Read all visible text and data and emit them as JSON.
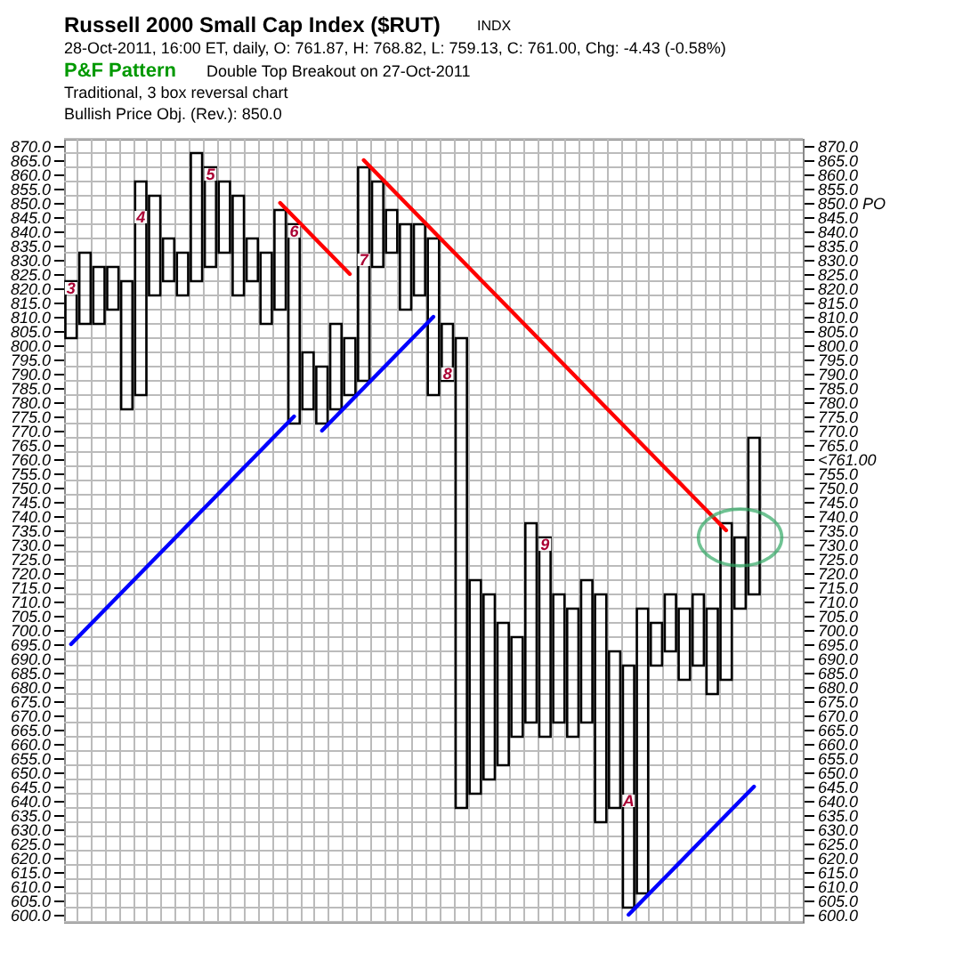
{
  "chart_data": {
    "type": "bar",
    "title": "Russell 2000 Small Cap Index ($RUT)",
    "subtitle": "28-Oct-2011, 16:00 ET, daily, O: 761.87, H: 768.82, L: 759.13, C: 761.00, Chg: -4.43 (-0.58%)",
    "annotations": [
      "INDX",
      "P&F Pattern",
      "Double Top Breakout on 27-Oct-2011",
      "Traditional, 3 box reversal chart",
      "Bullish Price Obj. (Rev.): 850.0",
      {
        "text": "3",
        "y": 820
      },
      {
        "text": "4",
        "y": 845
      },
      {
        "text": "5",
        "y": 860
      },
      {
        "text": "6",
        "y": 840
      },
      {
        "text": "7",
        "y": 830
      },
      {
        "text": "8",
        "y": 790
      },
      {
        "text": "9",
        "y": 730
      },
      {
        "text": "A",
        "y": 640
      }
    ],
    "categories": [
      null,
      null,
      null,
      null,
      null,
      null,
      null,
      null,
      null,
      null,
      null,
      null,
      null,
      null,
      null,
      null,
      null,
      null,
      null,
      null,
      null,
      null,
      null,
      null,
      null,
      null,
      null,
      null,
      null,
      null,
      null,
      null,
      null,
      null,
      null,
      null,
      null,
      null,
      null,
      null,
      null,
      null,
      null,
      null,
      null,
      null,
      null,
      null,
      null,
      null,
      null,
      null,
      null
    ],
    "series": [
      {
        "color": "#000000",
        "base": [
          null,
          807.5,
          null,
          812.5,
          null,
          782.5,
          null,
          822.5,
          null,
          822.5,
          null,
          832.5,
          null,
          822.5,
          null,
          812.5,
          null,
          777.5,
          null,
          777.5,
          null,
          787.5,
          null,
          832.5,
          null,
          817.5,
          null,
          787.5,
          null,
          642.5,
          null,
          652.5,
          null,
          667.5,
          null,
          667.5,
          null,
          667.5,
          null,
          637.5,
          null,
          607.5,
          null,
          692.5,
          null,
          687.5,
          null,
          682.5,
          null,
          712.5,
          null,
          null,
          null
        ],
        "values": [
          null,
          25,
          null,
          15,
          null,
          75,
          null,
          15,
          null,
          45,
          null,
          25,
          null,
          15,
          null,
          35,
          null,
          20,
          null,
          30,
          null,
          75,
          null,
          15,
          null,
          25,
          null,
          20,
          null,
          75,
          null,
          50,
          null,
          70,
          null,
          45,
          null,
          50,
          null,
          55,
          null,
          100,
          null,
          20,
          null,
          25,
          null,
          55,
          null,
          55,
          null,
          null,
          null
        ]
      },
      {
        "color": "#000000",
        "base": [
          802.5,
          null,
          807.5,
          null,
          777.5,
          null,
          817.5,
          null,
          817.5,
          null,
          827.5,
          null,
          817.5,
          null,
          807.5,
          null,
          772.5,
          null,
          772.5,
          null,
          782.5,
          null,
          827.5,
          null,
          812.5,
          null,
          782.5,
          null,
          637.5,
          null,
          647.5,
          null,
          662.5,
          null,
          662.5,
          null,
          662.5,
          null,
          632.5,
          null,
          602.5,
          null,
          687.5,
          null,
          682.5,
          null,
          677.5,
          null,
          707.5,
          null,
          null,
          null,
          null
        ],
        "values": [
          20,
          null,
          20,
          null,
          45,
          null,
          35,
          null,
          15,
          null,
          35,
          null,
          35,
          null,
          25,
          null,
          70,
          null,
          20,
          null,
          20,
          null,
          30,
          null,
          30,
          null,
          55,
          null,
          165,
          null,
          65,
          null,
          35,
          null,
          70,
          null,
          45,
          null,
          80,
          null,
          85,
          null,
          15,
          null,
          25,
          null,
          30,
          null,
          25,
          null,
          null,
          null,
          null
        ]
      },
      {
        "type": "line",
        "color": "#ff0000",
        "values": [
          null,
          null,
          null,
          null,
          null,
          null,
          null,
          null,
          null,
          null,
          null,
          null,
          null,
          null,
          null,
          850,
          845,
          840,
          835,
          830,
          825,
          null,
          null,
          null,
          null,
          null,
          null,
          null,
          null,
          null,
          null,
          null,
          null,
          null,
          null,
          null,
          null,
          null,
          null,
          null,
          null,
          null,
          null,
          null,
          null,
          null,
          null,
          null,
          null,
          null,
          null,
          null,
          null
        ]
      },
      {
        "type": "line",
        "color": "#ff0000",
        "values": [
          null,
          null,
          null,
          null,
          null,
          null,
          null,
          null,
          null,
          null,
          null,
          null,
          null,
          null,
          null,
          null,
          null,
          null,
          null,
          null,
          null,
          865,
          860,
          855,
          850,
          845,
          840,
          835,
          830,
          825,
          820,
          815,
          810,
          805,
          800,
          795,
          790,
          785,
          780,
          775,
          770,
          765,
          760,
          755,
          750,
          745,
          740,
          735,
          null,
          null,
          null,
          null,
          null
        ]
      },
      {
        "type": "line",
        "color": "#0000ff",
        "values": [
          695,
          700,
          705,
          710,
          715,
          720,
          725,
          730,
          735,
          740,
          745,
          750,
          755,
          760,
          765,
          770,
          775,
          null,
          null,
          null,
          null,
          null,
          null,
          null,
          null,
          null,
          null,
          null,
          null,
          null,
          null,
          null,
          null,
          null,
          null,
          null,
          null,
          null,
          null,
          null,
          null,
          null,
          null,
          null,
          null,
          null,
          null,
          null,
          null,
          null,
          null,
          null,
          null
        ]
      },
      {
        "type": "line",
        "color": "#0000ff",
        "values": [
          null,
          null,
          null,
          null,
          null,
          null,
          null,
          null,
          null,
          null,
          null,
          null,
          null,
          null,
          null,
          null,
          null,
          null,
          770,
          775,
          780,
          785,
          790,
          795,
          800,
          805,
          810,
          null,
          null,
          null,
          null,
          null,
          null,
          null,
          null,
          null,
          null,
          null,
          null,
          null,
          null,
          null,
          null,
          null,
          null,
          null,
          null,
          null,
          null,
          null,
          null,
          null,
          null
        ]
      },
      {
        "type": "line",
        "color": "#0000ff",
        "values": [
          null,
          null,
          null,
          null,
          null,
          null,
          null,
          null,
          null,
          null,
          null,
          null,
          null,
          null,
          null,
          null,
          null,
          null,
          null,
          null,
          null,
          null,
          null,
          null,
          null,
          null,
          null,
          null,
          null,
          null,
          null,
          null,
          null,
          null,
          null,
          null,
          null,
          null,
          null,
          null,
          600,
          605,
          610,
          615,
          620,
          625,
          630,
          635,
          640,
          645,
          null,
          null,
          null
        ]
      },
      {
        "type": "scatter",
        "color": "#ffffff",
        "marker": "square",
        "values": [
          820,
          null,
          null,
          null,
          null,
          845,
          null,
          null,
          null,
          null,
          860,
          null,
          null,
          null,
          null,
          null,
          840,
          null,
          null,
          null,
          null,
          830,
          null,
          null,
          null,
          null,
          null,
          790,
          null,
          null,
          null,
          null,
          null,
          null,
          730,
          null,
          null,
          null,
          null,
          null,
          640,
          null,
          null,
          null,
          null,
          null,
          null,
          null,
          null,
          null,
          null,
          null,
          null
        ]
      }
    ],
    "ylim": [
      597.5,
      872.5
    ],
    "yticks": [
      {
        "value": 600,
        "label": "600.0"
      },
      {
        "value": 605,
        "label": "605.0"
      },
      {
        "value": 610,
        "label": "610.0"
      },
      {
        "value": 615,
        "label": "615.0"
      },
      {
        "value": 620,
        "label": "620.0"
      },
      {
        "value": 625,
        "label": "625.0"
      },
      {
        "value": 630,
        "label": "630.0"
      },
      {
        "value": 635,
        "label": "635.0"
      },
      {
        "value": 640,
        "label": "640.0"
      },
      {
        "value": 645,
        "label": "645.0"
      },
      {
        "value": 650,
        "label": "650.0"
      },
      {
        "value": 655,
        "label": "655.0"
      },
      {
        "value": 660,
        "label": "660.0"
      },
      {
        "value": 665,
        "label": "665.0"
      },
      {
        "value": 670,
        "label": "670.0"
      },
      {
        "value": 675,
        "label": "675.0"
      },
      {
        "value": 680,
        "label": "680.0"
      },
      {
        "value": 685,
        "label": "685.0"
      },
      {
        "value": 690,
        "label": "690.0"
      },
      {
        "value": 695,
        "label": "695.0"
      },
      {
        "value": 700,
        "label": "700.0"
      },
      {
        "value": 705,
        "label": "705.0"
      },
      {
        "value": 710,
        "label": "710.0"
      },
      {
        "value": 715,
        "label": "715.0"
      },
      {
        "value": 720,
        "label": "720.0"
      },
      {
        "value": 725,
        "label": "725.0"
      },
      {
        "value": 730,
        "label": "730.0"
      },
      {
        "value": 735,
        "label": "735.0"
      },
      {
        "value": 740,
        "label": "740.0"
      },
      {
        "value": 745,
        "label": "745.0"
      },
      {
        "value": 750,
        "label": "750.0"
      },
      {
        "value": 755,
        "label": "755.0"
      },
      {
        "value": 760,
        "label": "760.0"
      },
      {
        "value": 765,
        "label": "765.0"
      },
      {
        "value": 770,
        "label": "770.0"
      },
      {
        "value": 775,
        "label": "775.0"
      },
      {
        "value": 780,
        "label": "780.0"
      },
      {
        "value": 785,
        "label": "785.0"
      },
      {
        "value": 790,
        "label": "790.0"
      },
      {
        "value": 795,
        "label": "795.0"
      },
      {
        "value": 800,
        "label": "800.0"
      },
      {
        "value": 805,
        "label": "805.0"
      },
      {
        "value": 810,
        "label": "810.0"
      },
      {
        "value": 815,
        "label": "815.0"
      },
      {
        "value": 820,
        "label": "820.0"
      },
      {
        "value": 825,
        "label": "825.0"
      },
      {
        "value": 830,
        "label": "830.0"
      },
      {
        "value": 835,
        "label": "835.0"
      },
      {
        "value": 840,
        "label": "840.0"
      },
      {
        "value": 845,
        "label": "845.0"
      },
      {
        "value": 850,
        "label": "850.0"
      },
      {
        "value": 855,
        "label": "855.0"
      },
      {
        "value": 860,
        "label": "860.0"
      },
      {
        "value": 865,
        "label": "865.0"
      },
      {
        "value": 870,
        "label": "870.0"
      }
    ],
    "y2lim": [
      597.5,
      872.5
    ],
    "y2ticks": [
      {
        "value": 600,
        "label": "600.0"
      },
      {
        "value": 605,
        "label": "605.0"
      },
      {
        "value": 610,
        "label": "610.0"
      },
      {
        "value": 615,
        "label": "615.0"
      },
      {
        "value": 620,
        "label": "620.0"
      },
      {
        "value": 625,
        "label": "625.0"
      },
      {
        "value": 630,
        "label": "630.0"
      },
      {
        "value": 635,
        "label": "635.0"
      },
      {
        "value": 640,
        "label": "640.0"
      },
      {
        "value": 645,
        "label": "645.0"
      },
      {
        "value": 650,
        "label": "650.0"
      },
      {
        "value": 655,
        "label": "655.0"
      },
      {
        "value": 660,
        "label": "660.0"
      },
      {
        "value": 665,
        "label": "665.0"
      },
      {
        "value": 670,
        "label": "670.0"
      },
      {
        "value": 675,
        "label": "675.0"
      },
      {
        "value": 680,
        "label": "680.0"
      },
      {
        "value": 685,
        "label": "685.0"
      },
      {
        "value": 690,
        "label": "690.0"
      },
      {
        "value": 695,
        "label": "695.0"
      },
      {
        "value": 700,
        "label": "700.0"
      },
      {
        "value": 705,
        "label": "705.0"
      },
      {
        "value": 710,
        "label": "710.0"
      },
      {
        "value": 715,
        "label": "715.0"
      },
      {
        "value": 720,
        "label": "720.0"
      },
      {
        "value": 725,
        "label": "725.0"
      },
      {
        "value": 730,
        "label": "730.0"
      },
      {
        "value": 735,
        "label": "735.0"
      },
      {
        "value": 740,
        "label": "740.0"
      },
      {
        "value": 745,
        "label": "745.0"
      },
      {
        "value": 750,
        "label": "750.0"
      },
      {
        "value": 755,
        "label": "755.0"
      },
      {
        "value": 760,
        "label": "<761.00"
      },
      {
        "value": 765,
        "label": "765.0"
      },
      {
        "value": 770,
        "label": "770.0"
      },
      {
        "value": 775,
        "label": "775.0"
      },
      {
        "value": 780,
        "label": "780.0"
      },
      {
        "value": 785,
        "label": "785.0"
      },
      {
        "value": 790,
        "label": "790.0"
      },
      {
        "value": 795,
        "label": "795.0"
      },
      {
        "value": 800,
        "label": "800.0"
      },
      {
        "value": 805,
        "label": "805.0"
      },
      {
        "value": 810,
        "label": "810.0"
      },
      {
        "value": 815,
        "label": "815.0"
      },
      {
        "value": 820,
        "label": "820.0"
      },
      {
        "value": 825,
        "label": "825.0"
      },
      {
        "value": 830,
        "label": "830.0"
      },
      {
        "value": 835,
        "label": "835.0"
      },
      {
        "value": 840,
        "label": "840.0"
      },
      {
        "value": 845,
        "label": "845.0"
      },
      {
        "value": 850,
        "label": "850.0 PO"
      },
      {
        "value": 855,
        "label": "855.0"
      },
      {
        "value": 860,
        "label": "860.0"
      },
      {
        "value": 865,
        "label": "865.0"
      },
      {
        "value": 870,
        "label": "870.0"
      }
    ],
    "grid": true
  }
}
